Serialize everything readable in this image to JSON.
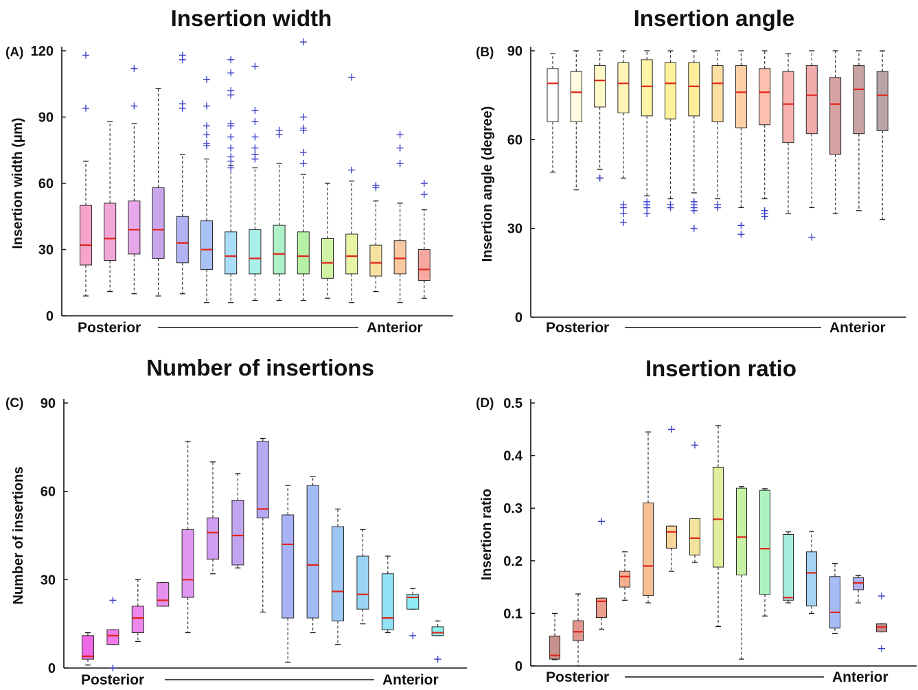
{
  "chart_data": [
    {
      "type": "box",
      "panel_label": "(A)",
      "title": "Insertion width",
      "ylabel": "Insertion width (μm)",
      "ylim": [
        0,
        120
      ],
      "yticks": [
        0,
        30,
        60,
        90,
        120
      ],
      "x_start_label": "Posterior",
      "x_end_label": "Anterior",
      "boxes": [
        {
          "color": "#f5a5cc",
          "whisker_low": 9,
          "q1": 23,
          "median": 32,
          "q3": 50,
          "whisker_high": 70,
          "outliers": [
            94,
            118
          ]
        },
        {
          "color": "#f3a6d8",
          "whisker_low": 11,
          "q1": 25,
          "median": 35,
          "q3": 51,
          "whisker_high": 88,
          "outliers": []
        },
        {
          "color": "#e7a7e8",
          "whisker_low": 10,
          "q1": 28,
          "median": 39,
          "q3": 52,
          "whisker_high": 87,
          "outliers": [
            95,
            112
          ]
        },
        {
          "color": "#c9a6ee",
          "whisker_low": 9,
          "q1": 26,
          "median": 39,
          "q3": 58,
          "whisker_high": 103,
          "outliers": []
        },
        {
          "color": "#b2b3f3",
          "whisker_low": 10,
          "q1": 24,
          "median": 33,
          "q3": 45,
          "whisker_high": 73,
          "outliers": [
            94,
            96,
            116,
            118
          ]
        },
        {
          "color": "#a9c2f6",
          "whisker_low": 6,
          "q1": 21,
          "median": 30,
          "q3": 43,
          "whisker_high": 71,
          "outliers": [
            77,
            78,
            82,
            86,
            95,
            107
          ]
        },
        {
          "color": "#a9dcf7",
          "whisker_low": 6,
          "q1": 19,
          "median": 27,
          "q3": 38,
          "whisker_high": 68,
          "outliers": [
            67,
            70,
            72,
            76,
            81,
            86,
            87,
            100,
            102,
            110,
            116
          ]
        },
        {
          "color": "#a9f0ea",
          "whisker_low": 7,
          "q1": 19,
          "median": 26,
          "q3": 39,
          "whisker_high": 67,
          "outliers": [
            71,
            73,
            76,
            81,
            88,
            93,
            113
          ]
        },
        {
          "color": "#adf2c8",
          "whisker_low": 7,
          "q1": 19,
          "median": 28,
          "q3": 41,
          "whisker_high": 69,
          "outliers": [
            82,
            84
          ]
        },
        {
          "color": "#b6f0a4",
          "whisker_low": 7,
          "q1": 19,
          "median": 27,
          "q3": 38,
          "whisker_high": 64,
          "outliers": [
            69,
            74,
            84,
            85,
            90,
            124
          ]
        },
        {
          "color": "#cff2a4",
          "whisker_low": 8,
          "q1": 17,
          "median": 24,
          "q3": 35,
          "whisker_high": 60,
          "outliers": []
        },
        {
          "color": "#e8f3a4",
          "whisker_low": 6,
          "q1": 19,
          "median": 27,
          "q3": 37,
          "whisker_high": 61,
          "outliers": [
            66,
            108
          ]
        },
        {
          "color": "#f5e2a0",
          "whisker_low": 11,
          "q1": 18,
          "median": 24,
          "q3": 32,
          "whisker_high": 52,
          "outliers": [
            58,
            59
          ]
        },
        {
          "color": "#f7c9a1",
          "whisker_low": 6,
          "q1": 19,
          "median": 26,
          "q3": 34,
          "whisker_high": 51,
          "outliers": [
            69,
            76,
            82
          ]
        },
        {
          "color": "#f5a8a0",
          "whisker_low": 8,
          "q1": 16,
          "median": 21,
          "q3": 30,
          "whisker_high": 48,
          "outliers": [
            55,
            60
          ]
        }
      ]
    },
    {
      "type": "box",
      "panel_label": "(B)",
      "title": "Insertion angle",
      "ylabel": "Insertion angle (degree)",
      "ylim": [
        0,
        90
      ],
      "yticks": [
        0,
        30,
        60,
        90
      ],
      "x_start_label": "Posterior",
      "x_end_label": "Anterior",
      "boxes": [
        {
          "color": "#ffffff",
          "whisker_low": 49,
          "q1": 66,
          "median": 79,
          "q3": 84,
          "whisker_high": 89,
          "outliers": []
        },
        {
          "color": "#fffbe0",
          "whisker_low": 43,
          "q1": 66,
          "median": 76,
          "q3": 83,
          "whisker_high": 90,
          "outliers": []
        },
        {
          "color": "#fff8c8",
          "whisker_low": 50,
          "q1": 71,
          "median": 80,
          "q3": 85,
          "whisker_high": 90,
          "outliers": [
            47,
            47
          ]
        },
        {
          "color": "#fff5b5",
          "whisker_low": 47,
          "q1": 69,
          "median": 79,
          "q3": 86,
          "whisker_high": 90,
          "outliers": [
            32,
            35,
            37,
            38
          ]
        },
        {
          "color": "#fff3a8",
          "whisker_low": 41,
          "q1": 68,
          "median": 78,
          "q3": 87,
          "whisker_high": 90,
          "outliers": [
            35,
            37,
            38,
            39
          ]
        },
        {
          "color": "#fef29c",
          "whisker_low": 40,
          "q1": 67,
          "median": 79,
          "q3": 86,
          "whisker_high": 90,
          "outliers": [
            37,
            38
          ]
        },
        {
          "color": "#feec9c",
          "whisker_low": 42,
          "q1": 68,
          "median": 78,
          "q3": 86,
          "whisker_high": 90,
          "outliers": [
            30,
            36,
            37,
            38,
            39
          ]
        },
        {
          "color": "#fde0a4",
          "whisker_low": 40,
          "q1": 66,
          "median": 79,
          "q3": 85,
          "whisker_high": 90,
          "outliers": [
            37,
            38
          ]
        },
        {
          "color": "#fdd0a8",
          "whisker_low": 37,
          "q1": 64,
          "median": 76,
          "q3": 85,
          "whisker_high": 90,
          "outliers": [
            28,
            31
          ]
        },
        {
          "color": "#fbc0ae",
          "whisker_low": 40,
          "q1": 65,
          "median": 76,
          "q3": 84,
          "whisker_high": 90,
          "outliers": [
            34,
            35,
            36
          ]
        },
        {
          "color": "#f8b2b0",
          "whisker_low": 35,
          "q1": 59,
          "median": 72,
          "q3": 83,
          "whisker_high": 89,
          "outliers": []
        },
        {
          "color": "#f1abab",
          "whisker_low": 37,
          "q1": 62,
          "median": 75,
          "q3": 85,
          "whisker_high": 90,
          "outliers": [
            27
          ]
        },
        {
          "color": "#d9a2a2",
          "whisker_low": 35,
          "q1": 55,
          "median": 72,
          "q3": 81,
          "whisker_high": 90,
          "outliers": []
        },
        {
          "color": "#c8a3a3",
          "whisker_low": 36,
          "q1": 62,
          "median": 77,
          "q3": 85,
          "whisker_high": 90,
          "outliers": []
        },
        {
          "color": "#b8a4a4",
          "whisker_low": 33,
          "q1": 63,
          "median": 75,
          "q3": 83,
          "whisker_high": 90,
          "outliers": []
        }
      ]
    },
    {
      "type": "box",
      "panel_label": "(C)",
      "title": "Number of insertions",
      "ylabel": "Number of insertions",
      "ylim": [
        0,
        90
      ],
      "yticks": [
        0,
        30,
        60,
        90
      ],
      "x_start_label": "Posterior",
      "x_end_label": "Anterior",
      "boxes": [
        {
          "color": "#f06ae6",
          "whisker_low": 1,
          "q1": 3,
          "median": 4,
          "q3": 11,
          "whisker_high": 12,
          "outliers": []
        },
        {
          "color": "#f07ae8",
          "whisker_low": 8,
          "q1": 8,
          "median": 11,
          "q3": 13,
          "whisker_high": 13,
          "outliers": [
            0,
            23
          ]
        },
        {
          "color": "#ee88ec",
          "whisker_low": 9,
          "q1": 12,
          "median": 17,
          "q3": 21,
          "whisker_high": 30,
          "outliers": []
        },
        {
          "color": "#e690ee",
          "whisker_low": 21,
          "q1": 21,
          "median": 23,
          "q3": 29,
          "whisker_high": 29,
          "outliers": []
        },
        {
          "color": "#de98f0",
          "whisker_low": 12,
          "q1": 24,
          "median": 30,
          "q3": 47,
          "whisker_high": 77,
          "outliers": []
        },
        {
          "color": "#d09ef0",
          "whisker_low": 32,
          "q1": 37,
          "median": 46,
          "q3": 51,
          "whisker_high": 70,
          "outliers": []
        },
        {
          "color": "#c3a4f0",
          "whisker_low": 34,
          "q1": 35,
          "median": 45,
          "q3": 57,
          "whisker_high": 66,
          "outliers": []
        },
        {
          "color": "#b4aaf2",
          "whisker_low": 19,
          "q1": 51,
          "median": 54,
          "q3": 77,
          "whisker_high": 78,
          "outliers": []
        },
        {
          "color": "#a9b2f4",
          "whisker_low": 2,
          "q1": 17,
          "median": 42,
          "q3": 52,
          "whisker_high": 62,
          "outliers": []
        },
        {
          "color": "#a3bbf5",
          "whisker_low": 12,
          "q1": 17,
          "median": 35,
          "q3": 62,
          "whisker_high": 65,
          "outliers": []
        },
        {
          "color": "#9ec8f6",
          "whisker_low": 8,
          "q1": 16,
          "median": 26,
          "q3": 48,
          "whisker_high": 54,
          "outliers": []
        },
        {
          "color": "#99d4f7",
          "whisker_low": 15,
          "q1": 20,
          "median": 25,
          "q3": 38,
          "whisker_high": 47,
          "outliers": []
        },
        {
          "color": "#93e2f7",
          "whisker_low": 12,
          "q1": 13,
          "median": 17,
          "q3": 32,
          "whisker_high": 38,
          "outliers": []
        },
        {
          "color": "#8eecf4",
          "whisker_low": 20,
          "q1": 20,
          "median": 24,
          "q3": 25,
          "whisker_high": 27,
          "outliers": [
            11
          ]
        },
        {
          "color": "#8af3ee",
          "whisker_low": 11,
          "q1": 11,
          "median": 12,
          "q3": 14,
          "whisker_high": 16,
          "outliers": [
            3
          ]
        }
      ]
    },
    {
      "type": "box",
      "panel_label": "(D)",
      "title": "Insertion ratio",
      "ylabel": "Insertion ratio",
      "ylim": [
        0,
        0.5
      ],
      "yticks": [
        0,
        0.1,
        0.2,
        0.3,
        0.4,
        0.5
      ],
      "x_start_label": "Posterior",
      "x_end_label": "Anterior",
      "boxes": [
        {
          "color": "#c9918b",
          "whisker_low": 0.012,
          "q1": 0.013,
          "median": 0.02,
          "q3": 0.057,
          "whisker_high": 0.1,
          "outliers": []
        },
        {
          "color": "#e0988e",
          "whisker_low": 0.0,
          "q1": 0.048,
          "median": 0.065,
          "q3": 0.086,
          "whisker_high": 0.137,
          "outliers": []
        },
        {
          "color": "#ee9e8c",
          "whisker_low": 0.07,
          "q1": 0.092,
          "median": 0.123,
          "q3": 0.129,
          "whisker_high": 0.129,
          "outliers": [
            0.275
          ]
        },
        {
          "color": "#f4ae90",
          "whisker_low": 0.125,
          "q1": 0.15,
          "median": 0.17,
          "q3": 0.18,
          "whisker_high": 0.217,
          "outliers": []
        },
        {
          "color": "#f6c097",
          "whisker_low": 0.12,
          "q1": 0.134,
          "median": 0.19,
          "q3": 0.31,
          "whisker_high": 0.445,
          "outliers": []
        },
        {
          "color": "#f8d69b",
          "whisker_low": 0.18,
          "q1": 0.224,
          "median": 0.255,
          "q3": 0.266,
          "whisker_high": 0.266,
          "outliers": [
            0.45
          ]
        },
        {
          "color": "#f1e29e",
          "whisker_low": 0.197,
          "q1": 0.211,
          "median": 0.243,
          "q3": 0.28,
          "whisker_high": 0.28,
          "outliers": [
            0.42
          ]
        },
        {
          "color": "#e2ee9e",
          "whisker_low": 0.075,
          "q1": 0.188,
          "median": 0.279,
          "q3": 0.378,
          "whisker_high": 0.457,
          "outliers": []
        },
        {
          "color": "#c7f2a6",
          "whisker_low": 0.013,
          "q1": 0.173,
          "median": 0.245,
          "q3": 0.338,
          "whisker_high": 0.341,
          "outliers": []
        },
        {
          "color": "#adf2bf",
          "whisker_low": 0.095,
          "q1": 0.136,
          "median": 0.223,
          "q3": 0.334,
          "whisker_high": 0.337,
          "outliers": []
        },
        {
          "color": "#a5ecdf",
          "whisker_low": 0.12,
          "q1": 0.125,
          "median": 0.13,
          "q3": 0.25,
          "whisker_high": 0.255,
          "outliers": []
        },
        {
          "color": "#a5d2f2",
          "whisker_low": 0.1,
          "q1": 0.114,
          "median": 0.177,
          "q3": 0.217,
          "whisker_high": 0.256,
          "outliers": []
        },
        {
          "color": "#a7bcf4",
          "whisker_low": 0.062,
          "q1": 0.072,
          "median": 0.102,
          "q3": 0.17,
          "whisker_high": 0.195,
          "outliers": []
        },
        {
          "color": "#afb0ee",
          "whisker_low": 0.12,
          "q1": 0.145,
          "median": 0.158,
          "q3": 0.168,
          "whisker_high": 0.172,
          "outliers": []
        },
        {
          "color": "#c49090",
          "whisker_low": 0.065,
          "q1": 0.065,
          "median": 0.074,
          "q3": 0.08,
          "whisker_high": 0.08,
          "outliers": [
            0.033,
            0.133
          ]
        }
      ]
    }
  ],
  "colors": {
    "median": "#e0241b",
    "outlier": "#3a3fc8",
    "axis": "#111111",
    "whisker": "#333333"
  }
}
